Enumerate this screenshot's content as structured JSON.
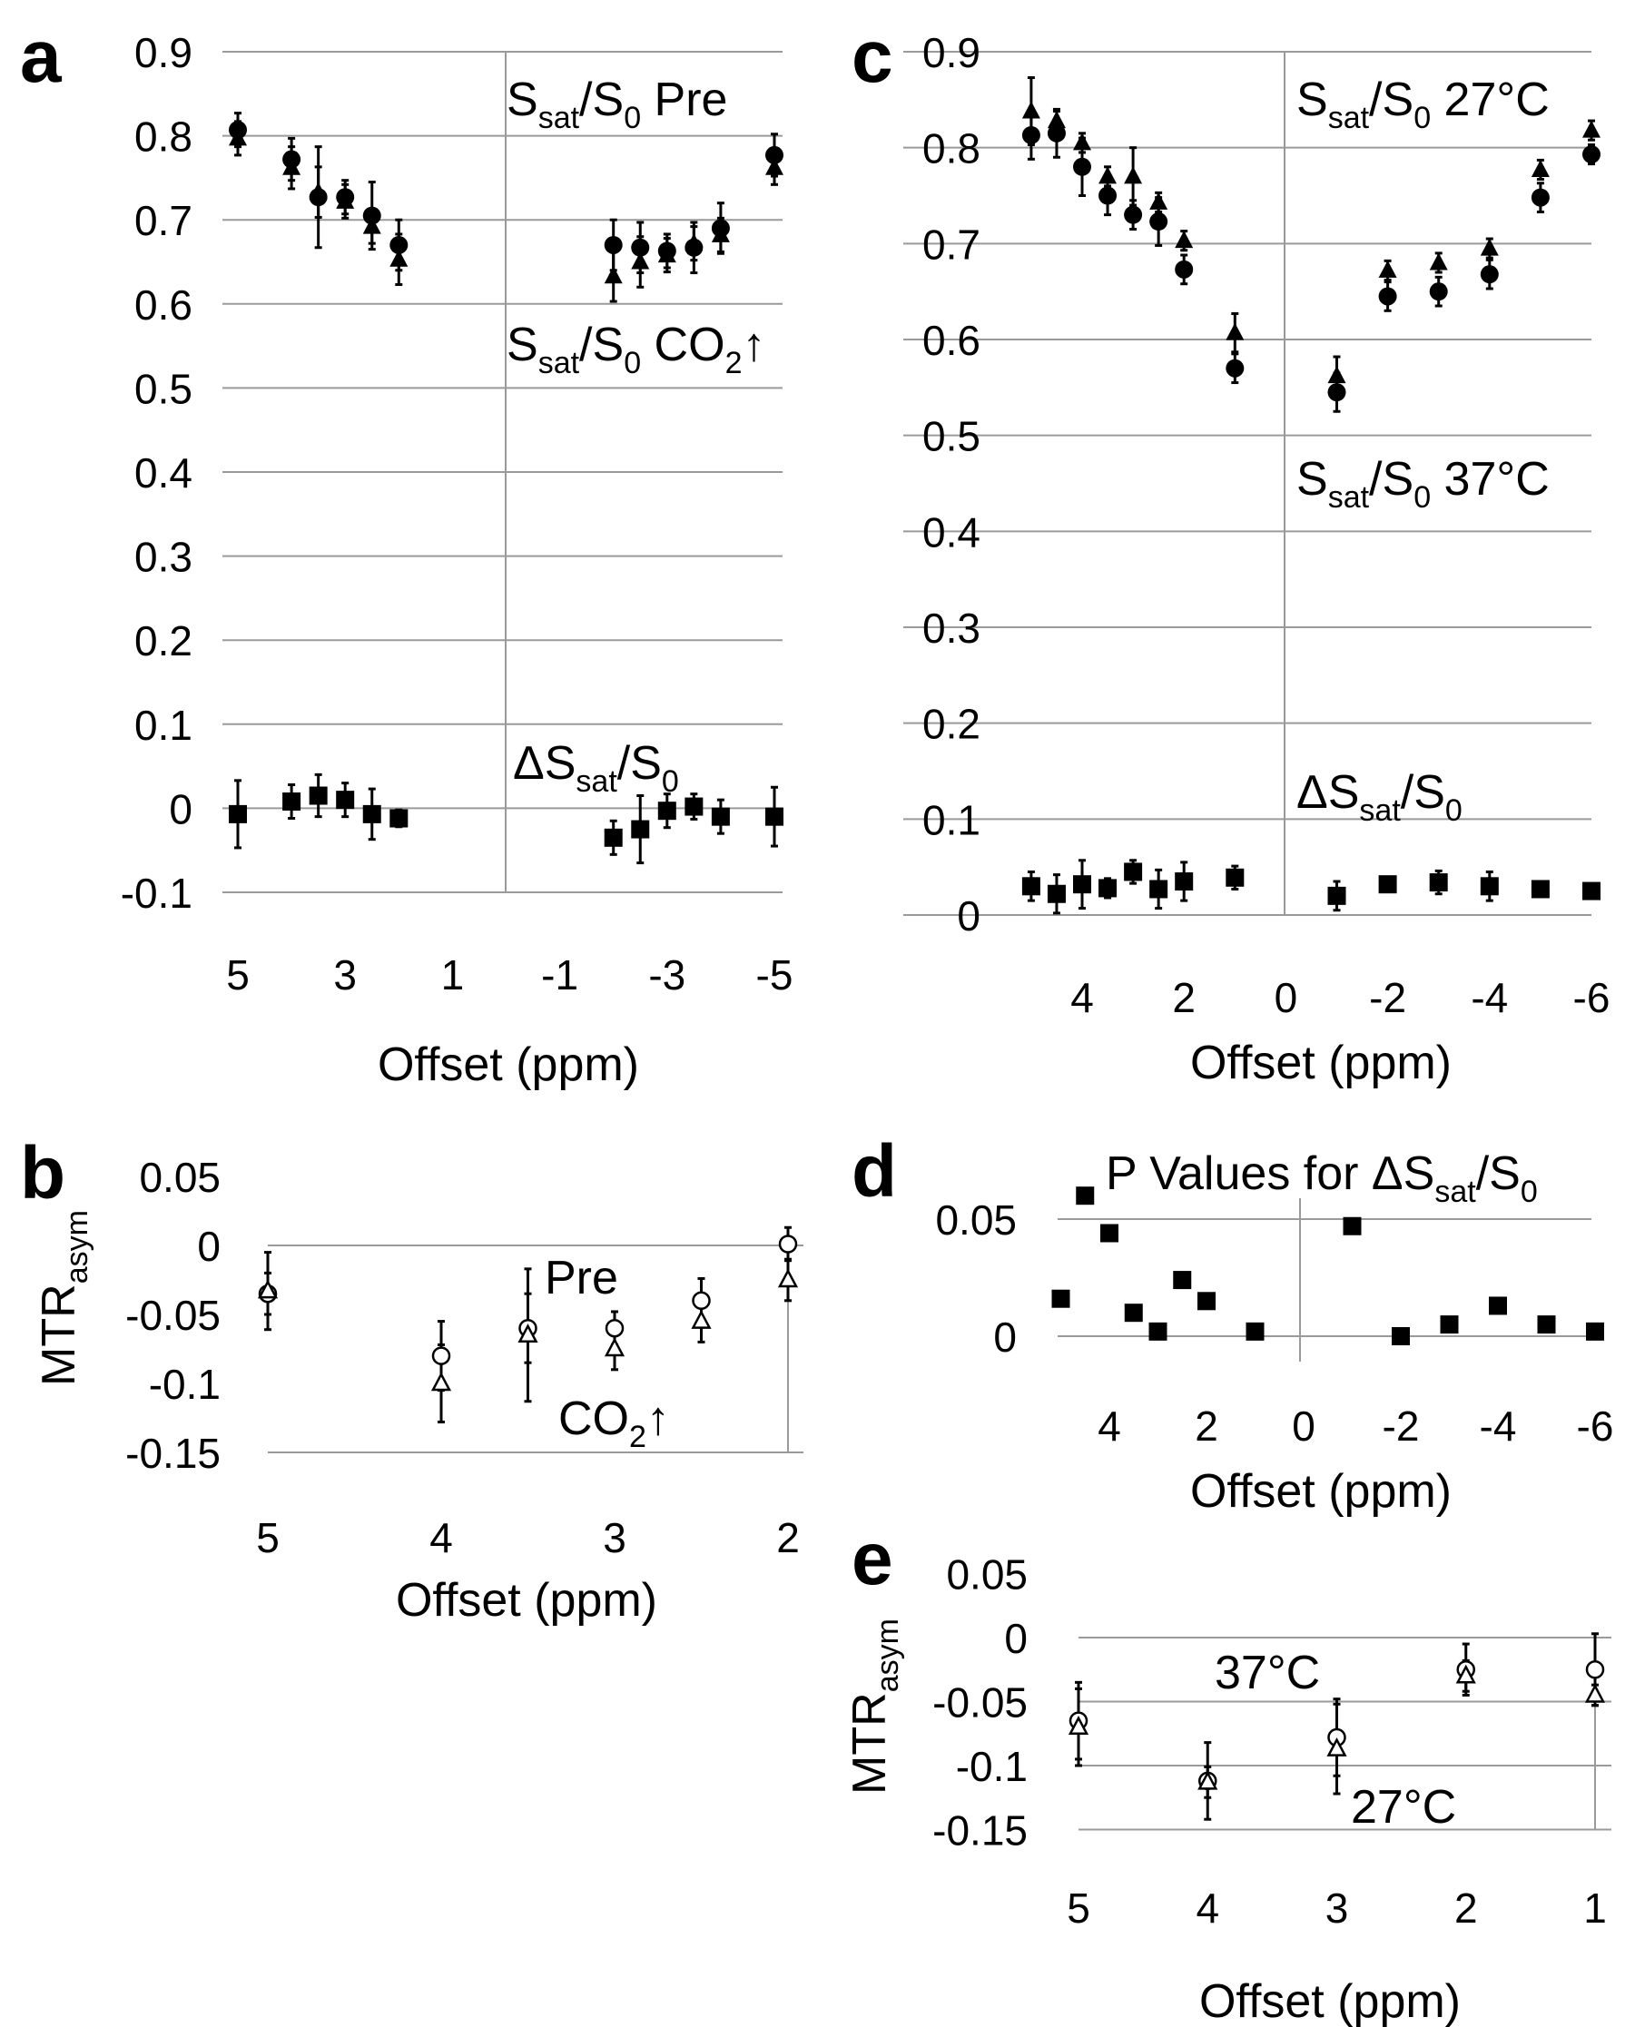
{
  "panels": {
    "a": {
      "label": "a",
      "xlabel": "Offset (ppm)",
      "ylabel": "",
      "yticks": [
        "0.9",
        "0.8",
        "0.7",
        "0.6",
        "0.5",
        "0.4",
        "0.3",
        "0.2",
        "0.1",
        "0",
        "-0.1"
      ],
      "xticks": [
        "5",
        "3",
        "1",
        "-1",
        "-3",
        "-5"
      ],
      "annotations": {
        "pre": {
          "p1": "S",
          "sub1": "sat",
          "p2": "/S",
          "sub2": "0",
          "p3": " Pre"
        },
        "co2": {
          "p1": "S",
          "sub1": "sat",
          "p2": "/S",
          "sub2": "0",
          "p3": " CO",
          "sub3": "2",
          "p4": "↑"
        },
        "delta": {
          "p1": "ΔS",
          "sub1": "sat",
          "p2": "/S",
          "sub2": "0"
        }
      }
    },
    "b": {
      "label": "b",
      "xlabel": "Offset (ppm)",
      "ylabel": {
        "main": "MTR",
        "sub": "asym"
      },
      "yticks": [
        "0.05",
        "0",
        "-0.05",
        "-0.1",
        "-0.15"
      ],
      "xticks": [
        "5",
        "4",
        "3",
        "2"
      ],
      "annotations": {
        "pre": "Pre",
        "co2": {
          "p1": "CO",
          "sub1": "2",
          "p2": "↑"
        }
      }
    },
    "c": {
      "label": "c",
      "xlabel": "Offset (ppm)",
      "ylabel": "",
      "yticks": [
        "0.9",
        "0.8",
        "0.7",
        "0.6",
        "0.5",
        "0.4",
        "0.3",
        "0.2",
        "0.1",
        "0"
      ],
      "xticks": [
        "4",
        "2",
        "0",
        "-2",
        "-4",
        "-6"
      ],
      "annotations": {
        "t27": {
          "p1": "S",
          "sub1": "sat",
          "p2": "/S",
          "sub2": "0",
          "p3": " 27°C"
        },
        "t37": {
          "p1": "S",
          "sub1": "sat",
          "p2": "/S",
          "sub2": "0",
          "p3": " 37°C"
        },
        "delta": {
          "p1": "ΔS",
          "sub1": "sat",
          "p2": "/S",
          "sub2": "0"
        }
      }
    },
    "d": {
      "label": "d",
      "title": {
        "p1": "P Values for ΔS",
        "sub1": "sat",
        "p2": "/S",
        "sub2": "0"
      },
      "xlabel": "Offset (ppm)",
      "ylabel": "",
      "yticks": [
        "0.05",
        "0"
      ],
      "xticks": [
        "4",
        "2",
        "0",
        "-2",
        "-4",
        "-6"
      ]
    },
    "e": {
      "label": "e",
      "xlabel": "Offset (ppm)",
      "ylabel": {
        "main": "MTR",
        "sub": "asym"
      },
      "yticks": [
        "0.05",
        "0",
        "-0.05",
        "-0.1",
        "-0.15"
      ],
      "xticks": [
        "5",
        "4",
        "3",
        "2",
        "1"
      ],
      "annotations": {
        "t37": "37°C",
        "t27": "27°C"
      }
    }
  },
  "chart_data": [
    {
      "panel": "a",
      "type": "scatter",
      "xlim": [
        5.5,
        -5.5
      ],
      "ylim": [
        -0.1,
        0.9
      ],
      "x_axis_reversed": true,
      "grid": true,
      "series": [
        {
          "name": "Ssat/S0 Pre",
          "marker": "circle-filled",
          "x": [
            5,
            4,
            3.5,
            3,
            2.5,
            2,
            -2,
            -2.5,
            -3,
            -3.5,
            -4,
            -5
          ],
          "y": [
            0.807,
            0.772,
            0.727,
            0.727,
            0.705,
            0.67,
            0.67,
            0.667,
            0.663,
            0.667,
            0.69,
            0.777
          ],
          "err": [
            0.02,
            0.025,
            0.06,
            0.02,
            0.04,
            0.03,
            0.03,
            0.03,
            0.02,
            0.03,
            0.03,
            0.025
          ]
        },
        {
          "name": "Ssat/S0 CO2↑",
          "marker": "triangle-filled",
          "x": [
            5,
            4,
            3.5,
            3,
            2.5,
            2,
            -2,
            -2.5,
            -3,
            -3.5,
            -4,
            -5
          ],
          "y": [
            0.797,
            0.762,
            0.733,
            0.722,
            0.692,
            0.653,
            0.633,
            0.65,
            0.658,
            0.672,
            0.682,
            0.762
          ],
          "err": [
            0.02,
            0.025,
            0.03,
            0.02,
            0.02,
            0.03,
            0.03,
            0.03,
            0.02,
            0.02,
            0.02,
            0.02
          ]
        },
        {
          "name": "ΔSsat/S0",
          "marker": "square-filled",
          "x": [
            5,
            4,
            3.5,
            3,
            2.5,
            2,
            -2,
            -2.5,
            -3,
            -3.5,
            -4,
            -5
          ],
          "y": [
            -0.007,
            0.008,
            0.015,
            0.01,
            -0.007,
            -0.012,
            -0.035,
            -0.025,
            -0.003,
            0.002,
            -0.01,
            -0.01
          ],
          "err": [
            0.04,
            0.02,
            0.025,
            0.02,
            0.03,
            0.01,
            0.02,
            0.04,
            0.02,
            0.015,
            0.02,
            0.035
          ]
        }
      ]
    },
    {
      "panel": "b",
      "type": "scatter",
      "xlim": [
        5,
        2
      ],
      "ylim": [
        -0.15,
        0.05
      ],
      "x_axis_reversed": true,
      "grid": true,
      "series": [
        {
          "name": "Pre",
          "marker": "circle-open",
          "x": [
            5,
            4,
            3.5,
            3,
            2.5,
            2
          ],
          "y": [
            -0.035,
            -0.08,
            -0.06,
            -0.06,
            -0.04,
            0.001
          ],
          "err": [
            0.015,
            0.025,
            0.025,
            0.012,
            0.016,
            0.012
          ]
        },
        {
          "name": "CO2↑",
          "marker": "triangle-open",
          "x": [
            5,
            4,
            3.5,
            3,
            2.5,
            2
          ],
          "y": [
            -0.033,
            -0.1,
            -0.065,
            -0.075,
            -0.055,
            -0.025
          ],
          "err": [
            0.028,
            0.028,
            0.048,
            0.015,
            0.015,
            0.015
          ]
        }
      ]
    },
    {
      "panel": "c",
      "type": "scatter",
      "xlim": [
        5,
        -6
      ],
      "ylim": [
        0,
        0.9
      ],
      "x_axis_reversed": true,
      "grid": true,
      "series": [
        {
          "name": "Ssat/S0 27°C",
          "marker": "triangle-filled",
          "x": [
            5,
            4.5,
            4,
            3.5,
            3,
            2.5,
            2,
            1,
            -1,
            -2,
            -3,
            -4,
            -5,
            -6
          ],
          "y": [
            0.838,
            0.828,
            0.805,
            0.77,
            0.77,
            0.743,
            0.703,
            0.607,
            0.562,
            0.672,
            0.68,
            0.695,
            0.777,
            0.818
          ],
          "err": [
            0.035,
            0.01,
            0.01,
            0.01,
            0.03,
            0.01,
            0.01,
            0.02,
            0.02,
            0.01,
            0.01,
            0.01,
            0.01,
            0.01
          ]
        },
        {
          "name": "Ssat/S0 37°C",
          "marker": "circle-filled",
          "x": [
            5,
            4.5,
            4,
            3.5,
            3,
            2.5,
            2,
            1,
            -1,
            -2,
            -3,
            -4,
            -5,
            -6
          ],
          "y": [
            0.813,
            0.815,
            0.78,
            0.75,
            0.73,
            0.723,
            0.673,
            0.57,
            0.545,
            0.645,
            0.65,
            0.668,
            0.748,
            0.793
          ],
          "err": [
            0.025,
            0.025,
            0.03,
            0.02,
            0.015,
            0.025,
            0.015,
            0.015,
            0.02,
            0.015,
            0.015,
            0.015,
            0.015,
            0.01
          ]
        },
        {
          "name": "ΔSsat/S0",
          "marker": "square-filled",
          "x": [
            5,
            4.5,
            4,
            3.5,
            3,
            2.5,
            2,
            1,
            -1,
            -2,
            -3,
            -4,
            -5,
            -6
          ],
          "y": [
            0.03,
            0.022,
            0.032,
            0.028,
            0.045,
            0.027,
            0.035,
            0.039,
            0.02,
            0.032,
            0.034,
            0.03,
            0.027,
            0.025
          ],
          "err": [
            0.015,
            0.02,
            0.025,
            0.01,
            0.012,
            0.02,
            0.02,
            0.012,
            0.015,
            0.005,
            0.012,
            0.015,
            0.008,
            0.006
          ]
        }
      ]
    },
    {
      "panel": "d",
      "type": "scatter",
      "xlim": [
        5.5,
        -6
      ],
      "ylim": [
        -0.002,
        0.06
      ],
      "x_axis_reversed": true,
      "grid": true,
      "series": [
        {
          "name": "P Values for ΔSsat/S0",
          "marker": "square-filled",
          "x": [
            5,
            4.5,
            4,
            3.5,
            3,
            2.5,
            2,
            1,
            -1,
            -2,
            -3,
            -4,
            -5,
            -6
          ],
          "y": [
            0.016,
            0.06,
            0.044,
            0.01,
            0.002,
            0.024,
            0.015,
            0.002,
            0.047,
            0.0,
            0.005,
            0.013,
            0.005,
            0.002
          ]
        }
      ]
    },
    {
      "panel": "e",
      "type": "scatter",
      "xlim": [
        5,
        1
      ],
      "ylim": [
        -0.15,
        0.05
      ],
      "x_axis_reversed": true,
      "grid": true,
      "series": [
        {
          "name": "37°C",
          "marker": "circle-open",
          "x": [
            5,
            4,
            3,
            2,
            1
          ],
          "y": [
            -0.065,
            -0.112,
            -0.078,
            -0.025,
            -0.025
          ],
          "err": [
            0.03,
            0.03,
            0.03,
            0.02,
            0.028
          ]
        },
        {
          "name": "27°C",
          "marker": "triangle-open",
          "x": [
            5,
            4,
            3,
            2,
            1
          ],
          "y": [
            -0.07,
            -0.113,
            -0.087,
            -0.03,
            -0.045
          ],
          "err": [
            0.03,
            0.012,
            0.035,
            0.012,
            0.008
          ]
        }
      ]
    }
  ]
}
